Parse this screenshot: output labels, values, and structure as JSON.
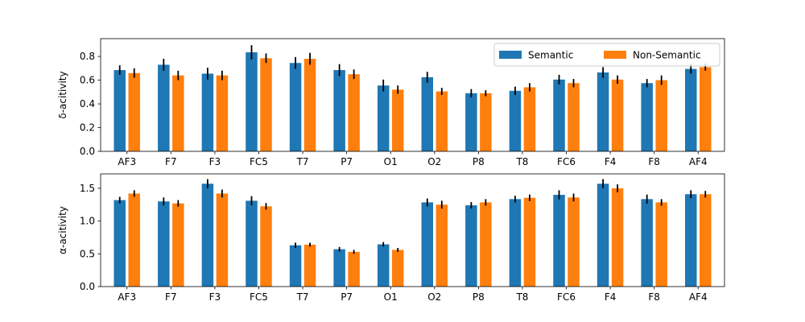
{
  "chart_data": [
    {
      "type": "bar",
      "categories": [
        "AF3",
        "F7",
        "F3",
        "FC5",
        "T7",
        "P7",
        "O1",
        "O2",
        "P8",
        "T8",
        "FC6",
        "F4",
        "F8",
        "AF4"
      ],
      "ylabel": "δ-acitivity",
      "ylim": [
        0,
        0.95
      ],
      "yticks": [
        0.0,
        0.2,
        0.4,
        0.6,
        0.8
      ],
      "ytick_labels": [
        "0.0",
        "0.2",
        "0.4",
        "0.6",
        "0.8"
      ],
      "legend": {
        "placement": "top-right",
        "columns": 2
      },
      "series": [
        {
          "name": "Semantic",
          "color": "#1f77b4",
          "values": [
            0.685,
            0.73,
            0.655,
            0.835,
            0.745,
            0.685,
            0.555,
            0.625,
            0.49,
            0.51,
            0.605,
            0.665,
            0.575,
            0.695
          ],
          "errors": [
            0.04,
            0.05,
            0.05,
            0.06,
            0.05,
            0.05,
            0.05,
            0.045,
            0.035,
            0.035,
            0.04,
            0.045,
            0.035,
            0.04
          ]
        },
        {
          "name": "Non-Semantic",
          "color": "#ff7f0e",
          "values": [
            0.66,
            0.64,
            0.64,
            0.785,
            0.78,
            0.65,
            0.52,
            0.505,
            0.49,
            0.54,
            0.575,
            0.605,
            0.6,
            0.71
          ],
          "errors": [
            0.04,
            0.04,
            0.04,
            0.04,
            0.05,
            0.04,
            0.035,
            0.03,
            0.025,
            0.035,
            0.035,
            0.035,
            0.04,
            0.03
          ]
        }
      ]
    },
    {
      "type": "bar",
      "categories": [
        "AF3",
        "F7",
        "F3",
        "FC5",
        "T7",
        "P7",
        "O1",
        "O2",
        "P8",
        "T8",
        "FC6",
        "F4",
        "F8",
        "AF4"
      ],
      "ylabel": "α-acitivity",
      "ylim": [
        0,
        1.72
      ],
      "yticks": [
        0.0,
        0.5,
        1.0,
        1.5
      ],
      "ytick_labels": [
        "0.0",
        "0.5",
        "1.0",
        "1.5"
      ],
      "series": [
        {
          "name": "Semantic",
          "color": "#1f77b4",
          "values": [
            1.32,
            1.3,
            1.57,
            1.31,
            0.63,
            0.57,
            0.645,
            1.285,
            1.24,
            1.335,
            1.4,
            1.57,
            1.335,
            1.41
          ],
          "errors": [
            0.05,
            0.06,
            0.07,
            0.07,
            0.04,
            0.035,
            0.035,
            0.06,
            0.05,
            0.05,
            0.07,
            0.07,
            0.07,
            0.06
          ]
        },
        {
          "name": "Non-Semantic",
          "color": "#ff7f0e",
          "values": [
            1.42,
            1.27,
            1.42,
            1.225,
            0.64,
            0.53,
            0.56,
            1.25,
            1.285,
            1.355,
            1.36,
            1.5,
            1.285,
            1.41
          ],
          "errors": [
            0.05,
            0.05,
            0.06,
            0.05,
            0.03,
            0.03,
            0.03,
            0.06,
            0.05,
            0.05,
            0.06,
            0.06,
            0.05,
            0.05
          ]
        }
      ]
    }
  ]
}
